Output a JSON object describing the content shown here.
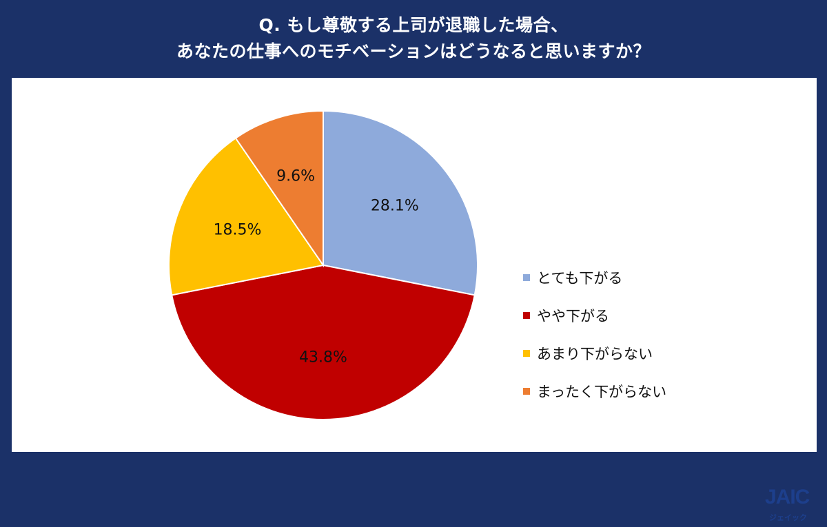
{
  "title": {
    "line1": "Q. もし尊敬する上司が退職した場合、",
    "line2": "あなたの仕事へのモチベーションはどうなると思いますか？"
  },
  "chart_data": {
    "type": "pie",
    "title": "Q. もし尊敬する上司が退職した場合、あなたの仕事へのモチベーションはどうなると思いますか？",
    "legend_position": "right",
    "slices": [
      {
        "label": "とても下がる",
        "value": 28.1,
        "display": "28.1%",
        "color": "#8eaadb"
      },
      {
        "label": "やや下がる",
        "value": 43.8,
        "display": "43.8%",
        "color": "#c00000"
      },
      {
        "label": "あまり下がらない",
        "value": 18.5,
        "display": "18.5%",
        "color": "#ffc000"
      },
      {
        "label": "まったく下がらない",
        "value": 9.6,
        "display": "9.6%",
        "color": "#ed7d31"
      }
    ]
  },
  "logo": {
    "main": "JAIC",
    "sub": "ジェイック"
  }
}
